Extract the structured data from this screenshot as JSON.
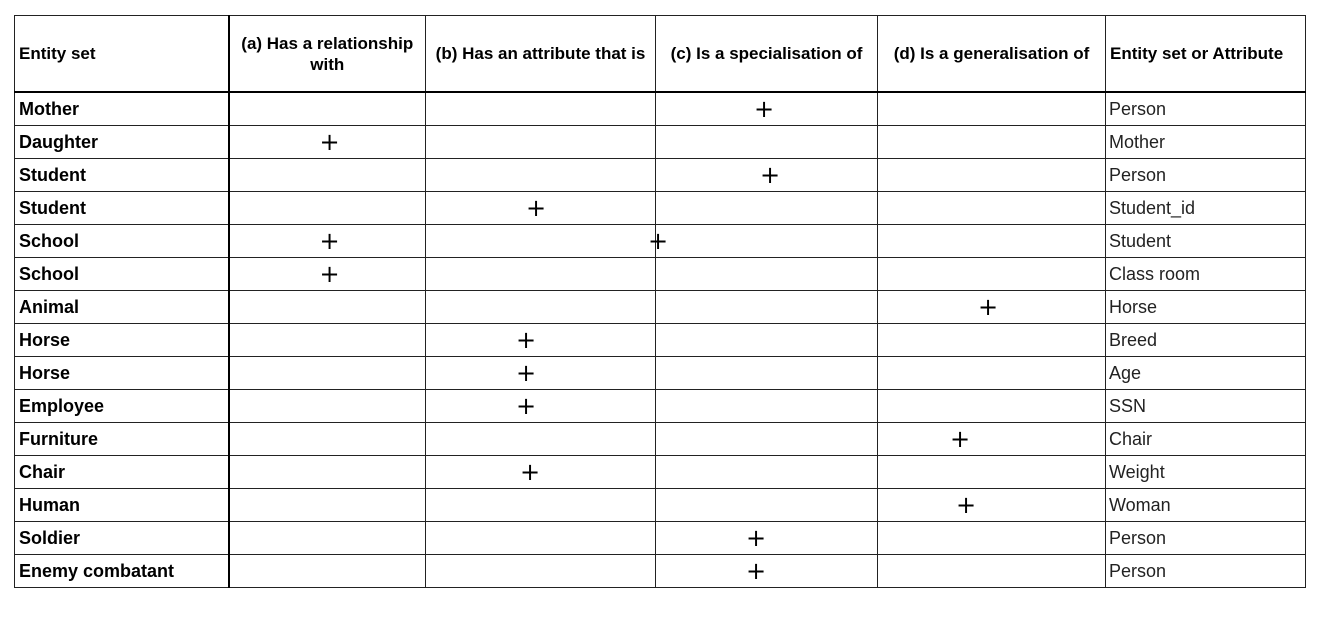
{
  "headers": [
    "Entity set",
    "(a) Has a relationship with",
    "(b) Has an attribute that is",
    "(c) Is a specialisation of",
    "(d) Is a generalisation of",
    "Entity set or Attribute"
  ],
  "rows": [
    {
      "entity": "Mother",
      "mark": "c",
      "target": "Person"
    },
    {
      "entity": "Daughter",
      "mark": "a",
      "target": "Mother"
    },
    {
      "entity": "Student",
      "mark": "c",
      "target": "Person"
    },
    {
      "entity": "Student",
      "mark": "b",
      "target": "Student_id"
    },
    {
      "entity": "School",
      "mark": "a",
      "target": "Student"
    },
    {
      "entity": "School",
      "mark": "a",
      "target": "Class room"
    },
    {
      "entity": "Animal",
      "mark": "d",
      "target": "Horse"
    },
    {
      "entity": "Horse",
      "mark": "b",
      "target": "Breed"
    },
    {
      "entity": "Horse",
      "mark": "b",
      "target": "Age"
    },
    {
      "entity": "Employee",
      "mark": "b",
      "target": "SSN"
    },
    {
      "entity": "Furniture",
      "mark": "d",
      "target": "Chair"
    },
    {
      "entity": "Chair",
      "mark": "b",
      "target": "Weight"
    },
    {
      "entity": "Human",
      "mark": "d",
      "target": "Woman"
    },
    {
      "entity": "Soldier",
      "mark": "c",
      "target": "Person"
    },
    {
      "entity": "Enemy combatant",
      "mark": "c",
      "target": "Person"
    }
  ],
  "mark_symbol": "+"
}
